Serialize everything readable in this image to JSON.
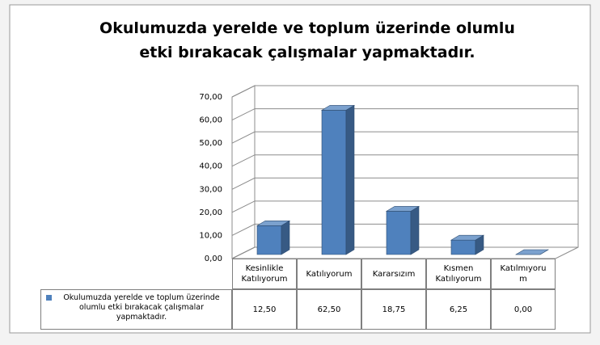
{
  "chart_data": {
    "type": "bar3d",
    "title": "Okulumuzda yerelde ve toplum üzerinde olumlu etki bırakacak çalışmalar yapmaktadır.",
    "categories": [
      "Kesinlikle Katılıyorum",
      "Katılıyorum",
      "Kararsızım",
      "Kısmen Katılıyorum",
      "Katılmıyorum"
    ],
    "series": [
      {
        "name": "Okulumuzda yerelde ve toplum üzerinde olumlu etki bırakacak çalışmalar yapmaktadır.",
        "color": "#4f81bd",
        "values": [
          12.5,
          62.5,
          18.75,
          6.25,
          0
        ],
        "value_labels": [
          "12,50",
          "62,50",
          "18,75",
          "6,25",
          "0,00"
        ]
      }
    ],
    "ylim": [
      0,
      70
    ],
    "yticks": [
      {
        "value": 0,
        "label": "0,00"
      },
      {
        "value": 10,
        "label": "10,00"
      },
      {
        "value": 20,
        "label": "20,00"
      },
      {
        "value": 30,
        "label": "30,00"
      },
      {
        "value": 40,
        "label": "40,00"
      },
      {
        "value": 50,
        "label": "50,00"
      },
      {
        "value": 60,
        "label": "60,00"
      },
      {
        "value": 70,
        "label": "70,00"
      }
    ],
    "grid": true,
    "data_table": true
  }
}
